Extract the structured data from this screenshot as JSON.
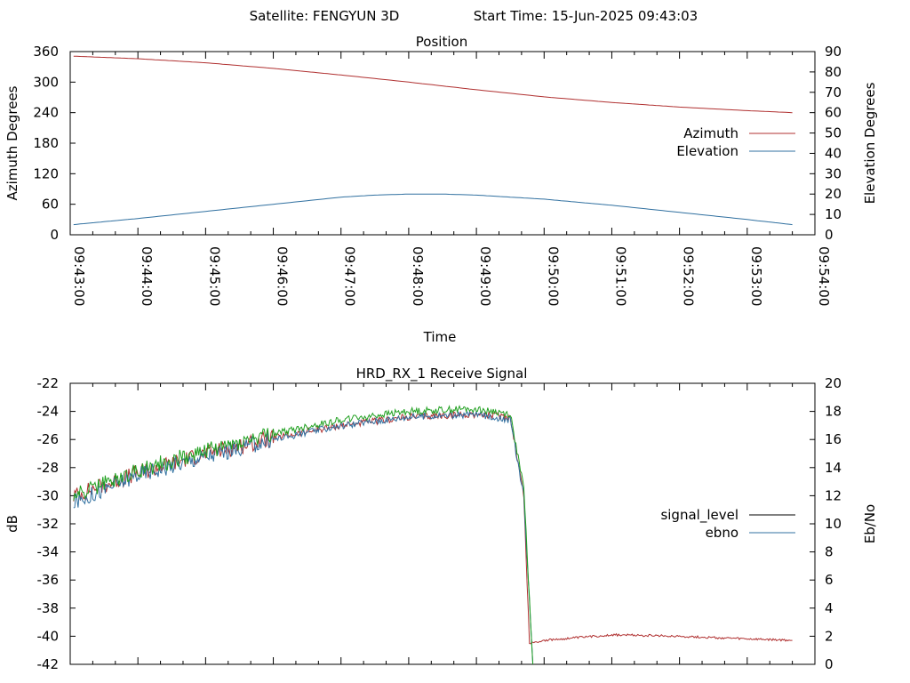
{
  "header": {
    "satellite": "Satellite: FENGYUN 3D",
    "start_time": "Start Time: 15-Jun-2025 09:43:03"
  },
  "chart_data": [
    {
      "type": "line",
      "title": "Position",
      "xlabel": "Time",
      "ylabel": "Azimuth Degrees",
      "y2label": "Elevation Degrees",
      "x_ticks": [
        "09:43:00",
        "09:44:00",
        "09:45:00",
        "09:46:00",
        "09:47:00",
        "09:48:00",
        "09:49:00",
        "09:50:00",
        "09:51:00",
        "09:52:00",
        "09:53:00",
        "09:54:00"
      ],
      "xlim": [
        "09:43:00",
        "09:54:00"
      ],
      "ylim": [
        0,
        360
      ],
      "yticks": [
        0,
        60,
        120,
        180,
        240,
        300,
        360
      ],
      "y2lim": [
        0,
        90
      ],
      "y2ticks": [
        0,
        10,
        20,
        30,
        40,
        50,
        60,
        70,
        80,
        90
      ],
      "legend_position": "right",
      "grid": false,
      "series": [
        {
          "name": "Azimuth",
          "axis": "left",
          "color": "#b03030",
          "x": [
            "09:43:03",
            "09:44:00",
            "09:45:00",
            "09:46:00",
            "09:47:00",
            "09:48:00",
            "09:49:00",
            "09:50:00",
            "09:51:00",
            "09:52:00",
            "09:53:00",
            "09:53:40"
          ],
          "values": [
            351,
            346,
            338,
            327,
            314,
            300,
            285,
            271,
            260,
            251,
            244,
            240
          ]
        },
        {
          "name": "Elevation",
          "axis": "right",
          "color": "#3070a0",
          "x": [
            "09:43:03",
            "09:44:00",
            "09:45:00",
            "09:46:00",
            "09:47:00",
            "09:47:30",
            "09:48:00",
            "09:48:30",
            "09:49:00",
            "09:50:00",
            "09:51:00",
            "09:52:00",
            "09:53:00",
            "09:53:40"
          ],
          "values": [
            5,
            8,
            11.5,
            15,
            18.5,
            19.5,
            20,
            20,
            19.5,
            17.5,
            14.5,
            11,
            7.5,
            5
          ]
        }
      ]
    },
    {
      "type": "line",
      "title": "HRD_RX_1 Receive Signal",
      "ylabel": "dB",
      "y2label": "Eb/No",
      "xlim": [
        "09:43:00",
        "09:54:00"
      ],
      "ylim": [
        -42,
        -22
      ],
      "yticks": [
        -42,
        -40,
        -38,
        -36,
        -34,
        -32,
        -30,
        -28,
        -26,
        -24,
        -22
      ],
      "y2lim": [
        0,
        20
      ],
      "y2ticks": [
        0,
        2,
        4,
        6,
        8,
        10,
        12,
        14,
        16,
        18,
        20
      ],
      "legend_position": "right",
      "grid": false,
      "series": [
        {
          "name": "signal_level",
          "axis": "left",
          "color": "#b03030",
          "x": [
            "09:43:03",
            "09:44:00",
            "09:45:00",
            "09:46:00",
            "09:47:00",
            "09:48:00",
            "09:49:00",
            "09:49:30",
            "09:49:42",
            "09:49:47",
            "09:50:00",
            "09:51:00",
            "09:52:00",
            "09:53:00",
            "09:53:40"
          ],
          "values": [
            -30,
            -28.4,
            -27,
            -25.9,
            -25,
            -24.4,
            -24.2,
            -24.4,
            -30,
            -40.5,
            -40.3,
            -39.9,
            -40,
            -40.2,
            -40.3
          ]
        },
        {
          "name": "ebno",
          "axis": "right",
          "color": "#3070a0",
          "x": [
            "09:43:03",
            "09:44:00",
            "09:45:00",
            "09:46:00",
            "09:47:00",
            "09:48:00",
            "09:49:00",
            "09:49:30",
            "09:49:42",
            "09:49:50"
          ],
          "values": [
            11.5,
            13.5,
            14.8,
            16.0,
            17.0,
            17.6,
            17.8,
            17.4,
            12,
            0
          ]
        },
        {
          "name": "",
          "axis": "right",
          "color": "#20a020",
          "x": [
            "09:43:03",
            "09:44:00",
            "09:45:00",
            "09:46:00",
            "09:47:00",
            "09:48:00",
            "09:49:00",
            "09:49:30",
            "09:49:42",
            "09:49:50"
          ],
          "values": [
            12,
            13.8,
            15.2,
            16.4,
            17.4,
            18.0,
            18.2,
            17.8,
            12.5,
            0
          ]
        }
      ]
    }
  ]
}
